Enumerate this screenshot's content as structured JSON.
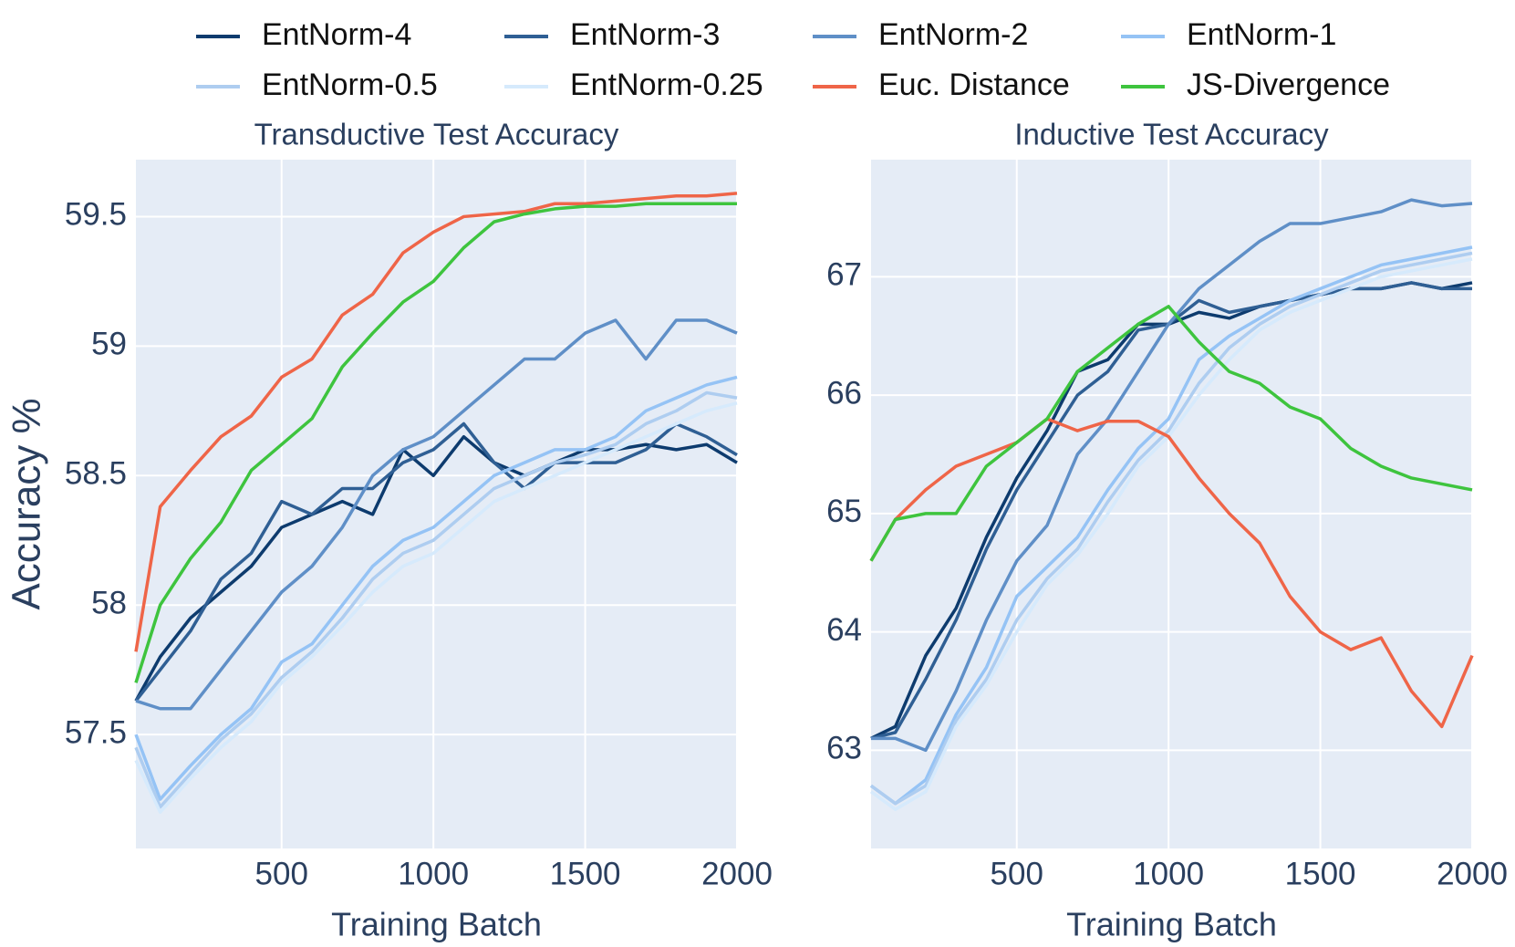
{
  "chart_data": [
    {
      "type": "line",
      "title": "Transductive Test Accuracy",
      "x_label": "Training Batch",
      "y_label": "Accuracy %",
      "x": [
        20,
        100,
        200,
        300,
        400,
        500,
        600,
        700,
        800,
        900,
        1000,
        1100,
        1200,
        1300,
        1400,
        1500,
        1600,
        1700,
        1800,
        1900,
        2000
      ],
      "xlim": [
        20,
        2000
      ],
      "xticks": [
        500,
        1000,
        1500,
        2000
      ],
      "ylim": [
        57.06,
        59.72
      ],
      "yticks": [
        57.5,
        58,
        58.5,
        59,
        59.5
      ],
      "grid": true,
      "series": [
        {
          "name": "EntNorm-4",
          "color": "#0d3b6e",
          "values": [
            57.63,
            57.8,
            57.95,
            58.05,
            58.15,
            58.3,
            58.35,
            58.4,
            58.35,
            58.6,
            58.5,
            58.65,
            58.55,
            58.5,
            58.55,
            58.6,
            58.6,
            58.62,
            58.6,
            58.62,
            58.55
          ]
        },
        {
          "name": "EntNorm-3",
          "color": "#2f5f94",
          "values": [
            57.63,
            57.75,
            57.9,
            58.1,
            58.2,
            58.4,
            58.35,
            58.45,
            58.45,
            58.55,
            58.6,
            58.7,
            58.55,
            58.45,
            58.55,
            58.55,
            58.55,
            58.6,
            58.7,
            58.65,
            58.58
          ]
        },
        {
          "name": "EntNorm-2",
          "color": "#5f8fc7",
          "values": [
            57.63,
            57.6,
            57.6,
            57.75,
            57.9,
            58.05,
            58.15,
            58.3,
            58.5,
            58.6,
            58.65,
            58.75,
            58.85,
            58.95,
            58.95,
            59.05,
            59.1,
            58.95,
            59.1,
            59.1,
            59.05
          ]
        },
        {
          "name": "EntNorm-1",
          "color": "#95c3f5",
          "values": [
            57.5,
            57.25,
            57.38,
            57.5,
            57.6,
            57.78,
            57.85,
            58.0,
            58.15,
            58.25,
            58.3,
            58.4,
            58.5,
            58.55,
            58.6,
            58.6,
            58.65,
            58.75,
            58.8,
            58.85,
            58.88
          ]
        },
        {
          "name": "EntNorm-0.5",
          "color": "#aecdf0",
          "values": [
            57.45,
            57.22,
            57.35,
            57.48,
            57.58,
            57.72,
            57.82,
            57.95,
            58.1,
            58.2,
            58.25,
            58.35,
            58.45,
            58.5,
            58.55,
            58.58,
            58.62,
            58.7,
            58.75,
            58.82,
            58.8
          ]
        },
        {
          "name": "EntNorm-0.25",
          "color": "#d6eafc",
          "values": [
            57.4,
            57.2,
            57.33,
            57.45,
            57.55,
            57.7,
            57.8,
            57.92,
            58.05,
            58.15,
            58.2,
            58.3,
            58.4,
            58.45,
            58.5,
            58.55,
            58.6,
            58.65,
            58.7,
            58.75,
            58.78
          ]
        },
        {
          "name": "Euc. Distance",
          "color": "#ef6548",
          "values": [
            57.82,
            58.38,
            58.52,
            58.65,
            58.73,
            58.88,
            58.95,
            59.12,
            59.2,
            59.36,
            59.44,
            59.5,
            59.51,
            59.52,
            59.55,
            59.55,
            59.56,
            59.57,
            59.58,
            59.58,
            59.59
          ]
        },
        {
          "name": "JS-Divergence",
          "color": "#3ec43e",
          "values": [
            57.7,
            58.0,
            58.18,
            58.32,
            58.52,
            58.62,
            58.72,
            58.92,
            59.05,
            59.17,
            59.25,
            59.38,
            59.48,
            59.51,
            59.53,
            59.54,
            59.54,
            59.55,
            59.55,
            59.55,
            59.55
          ]
        }
      ]
    },
    {
      "type": "line",
      "title": "Inductive Test Accuracy",
      "x_label": "Training Batch",
      "x": [
        20,
        100,
        200,
        300,
        400,
        500,
        600,
        700,
        800,
        900,
        1000,
        1100,
        1200,
        1300,
        1400,
        1500,
        1600,
        1700,
        1800,
        1900,
        2000
      ],
      "xlim": [
        20,
        2000
      ],
      "xticks": [
        500,
        1000,
        1500,
        2000
      ],
      "ylim": [
        62.17,
        67.99
      ],
      "yticks": [
        63,
        64,
        65,
        66,
        67
      ],
      "grid": true,
      "series": [
        {
          "name": "EntNorm-4",
          "color": "#0d3b6e",
          "values": [
            63.1,
            63.2,
            63.8,
            64.2,
            64.8,
            65.3,
            65.7,
            66.2,
            66.3,
            66.6,
            66.6,
            66.7,
            66.65,
            66.75,
            66.8,
            66.85,
            66.9,
            66.9,
            66.95,
            66.9,
            66.95
          ]
        },
        {
          "name": "EntNorm-3",
          "color": "#2f5f94",
          "values": [
            63.1,
            63.15,
            63.6,
            64.1,
            64.7,
            65.2,
            65.6,
            66.0,
            66.2,
            66.55,
            66.6,
            66.8,
            66.7,
            66.75,
            66.8,
            66.85,
            66.9,
            66.9,
            66.95,
            66.9,
            66.9
          ]
        },
        {
          "name": "EntNorm-2",
          "color": "#5f8fc7",
          "values": [
            63.1,
            63.1,
            63.0,
            63.5,
            64.1,
            64.6,
            64.9,
            65.5,
            65.8,
            66.2,
            66.6,
            66.9,
            67.1,
            67.3,
            67.45,
            67.45,
            67.5,
            67.55,
            67.65,
            67.6,
            67.62
          ]
        },
        {
          "name": "EntNorm-1",
          "color": "#95c3f5",
          "values": [
            62.7,
            62.55,
            62.75,
            63.3,
            63.7,
            64.3,
            64.55,
            64.8,
            65.2,
            65.55,
            65.8,
            66.3,
            66.5,
            66.65,
            66.8,
            66.9,
            67.0,
            67.1,
            67.15,
            67.2,
            67.25
          ]
        },
        {
          "name": "EntNorm-0.5",
          "color": "#aecdf0",
          "values": [
            62.7,
            62.55,
            62.7,
            63.25,
            63.6,
            64.1,
            64.45,
            64.7,
            65.1,
            65.45,
            65.7,
            66.1,
            66.4,
            66.6,
            66.75,
            66.85,
            66.95,
            67.05,
            67.1,
            67.15,
            67.2
          ]
        },
        {
          "name": "EntNorm-0.25",
          "color": "#d6eafc",
          "values": [
            62.65,
            62.5,
            62.65,
            63.2,
            63.55,
            64.0,
            64.4,
            64.65,
            65.0,
            65.4,
            65.65,
            66.0,
            66.3,
            66.55,
            66.7,
            66.8,
            66.9,
            67.0,
            67.05,
            67.1,
            67.15
          ]
        },
        {
          "name": "Euc. Distance",
          "color": "#ef6548",
          "values": [
            64.6,
            64.95,
            65.2,
            65.4,
            65.5,
            65.6,
            65.8,
            65.7,
            65.78,
            65.78,
            65.65,
            65.3,
            65.0,
            64.75,
            64.3,
            64.0,
            63.85,
            63.95,
            63.5,
            63.2,
            63.8
          ]
        },
        {
          "name": "JS-Divergence",
          "color": "#3ec43e",
          "values": [
            64.6,
            64.95,
            65.0,
            65.0,
            65.4,
            65.6,
            65.8,
            66.2,
            66.4,
            66.6,
            66.75,
            66.45,
            66.2,
            66.1,
            65.9,
            65.8,
            65.55,
            65.4,
            65.3,
            65.25,
            65.2
          ]
        }
      ]
    }
  ]
}
